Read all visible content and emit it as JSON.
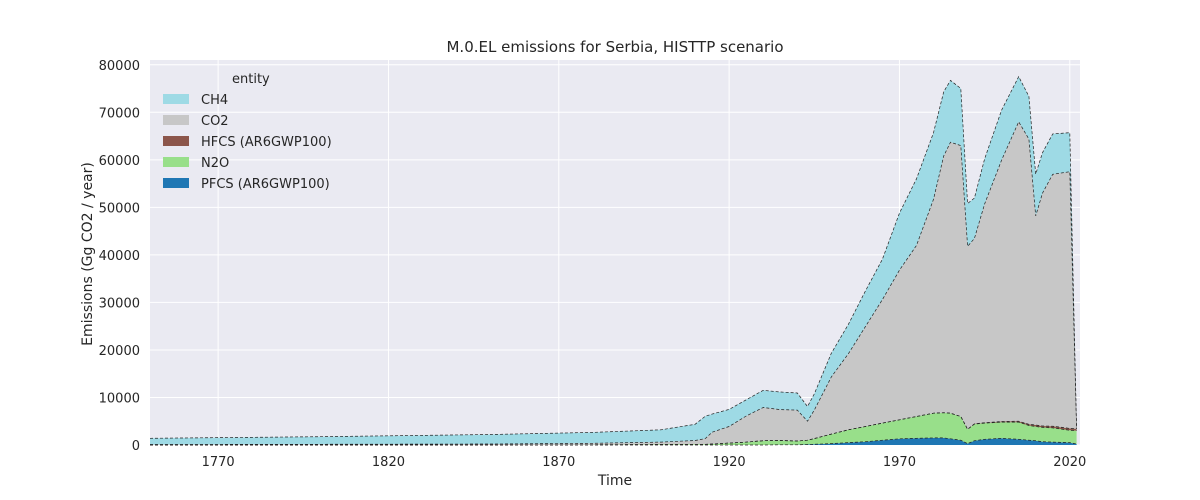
{
  "chart_data": {
    "type": "area",
    "stacked": true,
    "title": "M.0.EL emissions for Serbia, HISTTP scenario",
    "xlabel": "Time",
    "ylabel": "Emissions (Gg CO2 / year)",
    "xlim": [
      1750,
      2023
    ],
    "ylim": [
      0,
      81000
    ],
    "xticks": [
      1770,
      1820,
      1870,
      1920,
      1970,
      2020
    ],
    "yticks": [
      0,
      10000,
      20000,
      30000,
      40000,
      50000,
      60000,
      70000,
      80000
    ],
    "ytick_labels": [
      "0",
      "10000",
      "20000",
      "30000",
      "40000",
      "50000",
      "60000",
      "70000",
      "80000"
    ],
    "grid": true,
    "legend": {
      "title": "entity",
      "position": "top-left"
    },
    "x": [
      1750,
      1800,
      1850,
      1880,
      1900,
      1910,
      1913,
      1915,
      1920,
      1925,
      1930,
      1935,
      1940,
      1943,
      1945,
      1950,
      1955,
      1960,
      1965,
      1970,
      1975,
      1980,
      1983,
      1985,
      1988,
      1990,
      1992,
      1995,
      2000,
      2005,
      2008,
      2010,
      2012,
      2015,
      2020,
      2022
    ],
    "series": [
      {
        "name": "PFCS (AR6GWP100)",
        "color": "#1f77b4",
        "values": [
          0,
          0,
          0,
          0,
          0,
          0,
          0,
          0,
          0,
          0,
          0,
          50,
          50,
          100,
          150,
          300,
          500,
          700,
          1000,
          1300,
          1400,
          1500,
          1500,
          1300,
          1000,
          300,
          900,
          1200,
          1400,
          1200,
          1000,
          900,
          700,
          600,
          500,
          200
        ]
      },
      {
        "name": "N2O",
        "color": "#98df8a",
        "values": [
          0,
          0,
          0,
          50,
          100,
          150,
          150,
          200,
          400,
          600,
          900,
          900,
          800,
          900,
          1200,
          2000,
          2700,
          3200,
          3600,
          4000,
          4600,
          5200,
          5300,
          5400,
          5000,
          3000,
          3500,
          3400,
          3400,
          3600,
          3100,
          3000,
          3000,
          3000,
          2600,
          2800
        ]
      },
      {
        "name": "HFCS (AR6GWP100)",
        "color": "#8c564b",
        "values": [
          0,
          0,
          0,
          0,
          0,
          0,
          0,
          0,
          0,
          0,
          0,
          0,
          0,
          0,
          0,
          0,
          0,
          0,
          0,
          0,
          0,
          0,
          0,
          0,
          0,
          0,
          50,
          100,
          150,
          200,
          250,
          300,
          300,
          350,
          400,
          400
        ]
      },
      {
        "name": "CO2",
        "color": "#c7c7c7",
        "values": [
          100,
          150,
          200,
          300,
          500,
          800,
          1200,
          2500,
          3500,
          5500,
          7000,
          6500,
          6500,
          4000,
          6000,
          12000,
          16000,
          21000,
          26000,
          31500,
          36000,
          45000,
          54000,
          57000,
          57000,
          38500,
          39000,
          46000,
          55000,
          63000,
          60000,
          44000,
          49000,
          53000,
          54000,
          0
        ]
      },
      {
        "name": "CH4",
        "color": "#9edae5",
        "values": [
          1300,
          1600,
          2000,
          2300,
          2600,
          3400,
          4700,
          3800,
          3600,
          3400,
          3600,
          3700,
          3600,
          3100,
          3400,
          5000,
          6200,
          7500,
          8500,
          12000,
          14000,
          14000,
          13500,
          13000,
          12000,
          9000,
          8500,
          9500,
          10500,
          9500,
          9000,
          8800,
          8500,
          8500,
          8200,
          0
        ]
      }
    ]
  }
}
